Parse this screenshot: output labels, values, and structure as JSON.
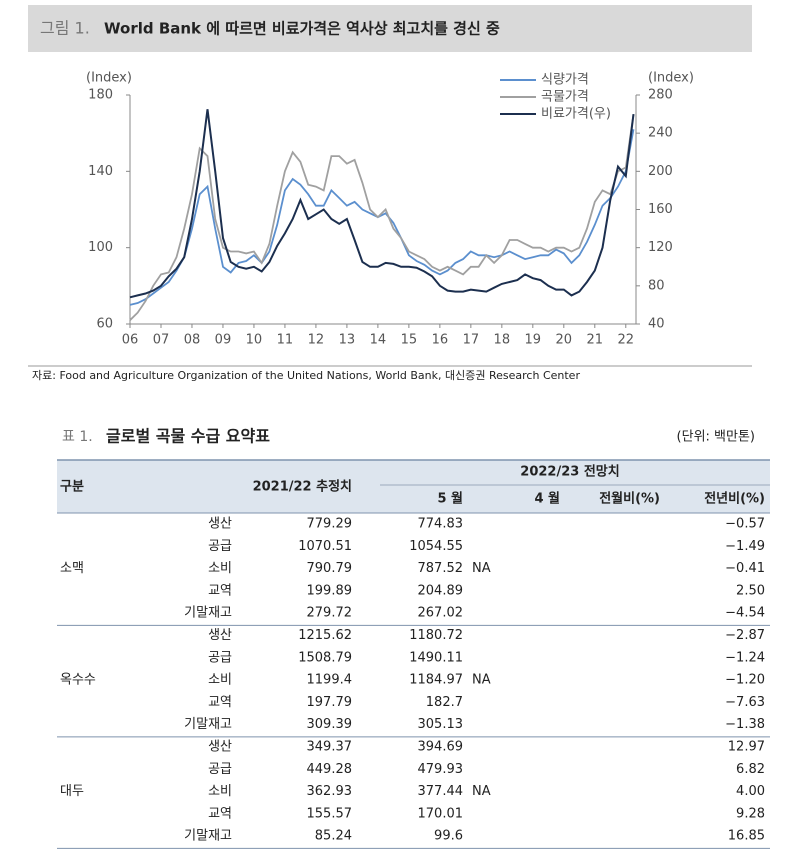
{
  "header": {
    "figure_label": "그림 1.",
    "title": "World Bank 에 따르면 비료가격은 역사상 최고치를 경신 중"
  },
  "chart_data": {
    "type": "line",
    "y_label": "(Index)",
    "y2_label": "(Index)",
    "x": [
      6,
      6.25,
      6.5,
      6.75,
      7,
      7.25,
      7.5,
      7.75,
      8,
      8.25,
      8.5,
      8.75,
      9,
      9.25,
      9.5,
      9.75,
      10,
      10.25,
      10.5,
      10.75,
      11,
      11.25,
      11.5,
      11.75,
      12,
      12.25,
      12.5,
      12.75,
      13,
      13.25,
      13.5,
      13.75,
      14,
      14.25,
      14.5,
      14.75,
      15,
      15.25,
      15.5,
      15.75,
      16,
      16.25,
      16.5,
      16.75,
      17,
      17.25,
      17.5,
      17.75,
      18,
      18.25,
      18.5,
      18.75,
      19,
      19.25,
      19.5,
      19.75,
      20,
      20.25,
      20.5,
      20.75,
      21,
      21.25,
      21.5,
      21.75,
      22,
      22.25
    ],
    "xlim": [
      6,
      22.33
    ],
    "xticks": [
      {
        "value": 6,
        "label": "06"
      },
      {
        "value": 7,
        "label": "07"
      },
      {
        "value": 8,
        "label": "08"
      },
      {
        "value": 9,
        "label": "09"
      },
      10,
      11,
      12,
      13,
      14,
      15,
      16,
      17,
      18,
      19,
      20,
      21,
      22
    ],
    "ylim": [
      60,
      180
    ],
    "yticks": [
      60,
      100,
      140,
      180
    ],
    "y2lim": [
      40,
      280
    ],
    "y2ticks": [
      40,
      80,
      120,
      160,
      200,
      240,
      280
    ],
    "series": [
      {
        "name": "식량가격",
        "color": "#5b8fce",
        "values": [
          70,
          71,
          73,
          76,
          79,
          82,
          88,
          95,
          110,
          128,
          132,
          110,
          90,
          87,
          92,
          93,
          96,
          92,
          98,
          112,
          130,
          136,
          133,
          128,
          122,
          122,
          130,
          126,
          122,
          124,
          120,
          118,
          116,
          118,
          113,
          105,
          96,
          93,
          91,
          88,
          86,
          88,
          92,
          94,
          98,
          96,
          96,
          95,
          96,
          98,
          96,
          94,
          95,
          96,
          96,
          99,
          97,
          92,
          96,
          103,
          112,
          122,
          126,
          132,
          140,
          162
        ]
      },
      {
        "name": "곡물가격",
        "color": "#a0a0a0",
        "values": [
          62,
          66,
          72,
          80,
          86,
          87,
          95,
          110,
          128,
          152,
          148,
          115,
          100,
          98,
          98,
          97,
          98,
          92,
          102,
          122,
          140,
          150,
          145,
          133,
          132,
          130,
          148,
          148,
          144,
          146,
          134,
          120,
          116,
          120,
          110,
          105,
          98,
          96,
          94,
          90,
          88,
          90,
          88,
          86,
          90,
          90,
          96,
          92,
          96,
          104,
          104,
          102,
          100,
          100,
          98,
          100,
          100,
          98,
          100,
          110,
          124,
          130,
          128,
          140,
          142,
          170
        ]
      },
      {
        "name": "비료가격(우)",
        "color": "#1c2f4f",
        "axis": "y2",
        "values": [
          68,
          70,
          72,
          75,
          80,
          90,
          98,
          110,
          150,
          200,
          265,
          200,
          130,
          105,
          100,
          98,
          100,
          95,
          105,
          122,
          135,
          150,
          170,
          150,
          155,
          160,
          150,
          145,
          150,
          128,
          105,
          100,
          100,
          104,
          103,
          100,
          100,
          99,
          95,
          90,
          80,
          75,
          74,
          74,
          76,
          75,
          74,
          78,
          82,
          84,
          86,
          92,
          88,
          86,
          80,
          76,
          76,
          70,
          74,
          84,
          96,
          120,
          170,
          205,
          195,
          260
        ]
      }
    ]
  },
  "source": "자료: Food and Agriculture Organization of the United Nations, World Bank, 대신증권 Research Center",
  "table_title": {
    "label": "표 1.",
    "title": "글로벌 곡물 수급 요약표",
    "unit": "(단위: 백만톤)"
  },
  "table": {
    "header": {
      "group": "구분",
      "estimate": "2021/22 추정치",
      "forecast": "2022/23 전망치",
      "may": "5 월",
      "april": "4 월",
      "mom": "전월비(%)",
      "yoy": "전년비(%)"
    },
    "groups": [
      {
        "name": "소맥",
        "na": "NA",
        "rows": [
          [
            "생산",
            "779.29",
            "774.83",
            "−0.57"
          ],
          [
            "공급",
            "1070.51",
            "1054.55",
            "−1.49"
          ],
          [
            "소비",
            "790.79",
            "787.52",
            "−0.41"
          ],
          [
            "교역",
            "199.89",
            "204.89",
            "2.50"
          ],
          [
            "기말재고",
            "279.72",
            "267.02",
            "−4.54"
          ]
        ]
      },
      {
        "name": "옥수수",
        "na": "NA",
        "rows": [
          [
            "생산",
            "1215.62",
            "1180.72",
            "−2.87"
          ],
          [
            "공급",
            "1508.79",
            "1490.11",
            "−1.24"
          ],
          [
            "소비",
            "1199.4",
            "1184.97",
            "−1.20"
          ],
          [
            "교역",
            "197.79",
            "182.7",
            "−7.63"
          ],
          [
            "기말재고",
            "309.39",
            "305.13",
            "−1.38"
          ]
        ]
      },
      {
        "name": "대두",
        "na": "NA",
        "rows": [
          [
            "생산",
            "349.37",
            "394.69",
            "12.97"
          ],
          [
            "공급",
            "449.28",
            "479.93",
            "6.82"
          ],
          [
            "소비",
            "362.93",
            "377.44",
            "4.00"
          ],
          [
            "교역",
            "155.57",
            "170.01",
            "9.28"
          ],
          [
            "기말재고",
            "85.24",
            "99.6",
            "16.85"
          ]
        ]
      }
    ]
  }
}
